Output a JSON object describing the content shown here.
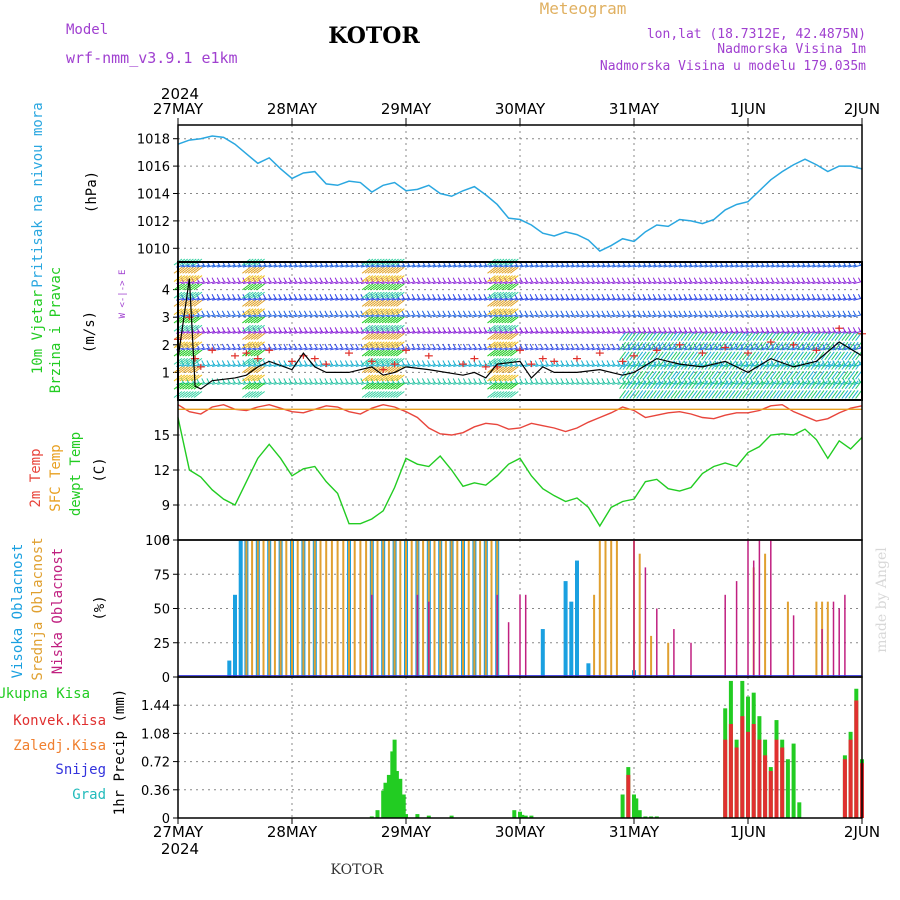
{
  "header": {
    "model_label": "Model",
    "model_name": "wrf-nmm_v3.9.1 e1km",
    "station": "KOTOR",
    "product": "Meteogram",
    "coords": "lon,lat (18.7312E, 42.4875N)",
    "elevation": "Nadmorska Visina 1m",
    "model_elevation": "Nadmorska Visina u modelu 179.035m"
  },
  "footer": {
    "station": "KOTOR",
    "credit": "made by Angel"
  },
  "time_axis": {
    "year": "2024",
    "labels": [
      "27MAY",
      "28MAY",
      "29MAY",
      "30MAY",
      "31MAY",
      "1JUN",
      "2JUN"
    ]
  },
  "colors": {
    "pressure": "#2aa7e0",
    "wind_speed": "#000000",
    "gust": "#e0302a",
    "temp_2m": "#e8453c",
    "temp_sfc": "#e8a020",
    "dewpoint": "#22cc22",
    "cloud_high": "#1aa0e0",
    "cloud_mid": "#e0a030",
    "cloud_low": "#c02080",
    "precip_total": "#22cc22",
    "precip_conv": "#e03030",
    "precip_strat": "#f08030",
    "snow": "#3333dd",
    "graupel": "#22bbbb",
    "purple_text": "#a040d0",
    "gold_text": "#e0b060"
  },
  "chart_data": [
    {
      "type": "line",
      "panel": "pressure",
      "ylabel": "Pritisak na nivou mora",
      "unit": "(hPa)",
      "ylim": [
        1009,
        1019
      ],
      "yticks": [
        1010,
        1012,
        1014,
        1016,
        1018
      ],
      "x_days": [
        0,
        0.1,
        0.2,
        0.3,
        0.4,
        0.5,
        0.6,
        0.7,
        0.8,
        0.9,
        1.0,
        1.1,
        1.2,
        1.3,
        1.4,
        1.5,
        1.6,
        1.7,
        1.8,
        1.9,
        2.0,
        2.1,
        2.2,
        2.3,
        2.4,
        2.5,
        2.6,
        2.7,
        2.8,
        2.9,
        3.0,
        3.1,
        3.2,
        3.3,
        3.4,
        3.5,
        3.6,
        3.7,
        3.8,
        3.9,
        4.0,
        4.1,
        4.2,
        4.3,
        4.4,
        4.5,
        4.6,
        4.7,
        4.8,
        4.9,
        5.0,
        5.1,
        5.2,
        5.3,
        5.4,
        5.5,
        5.6,
        5.7,
        5.8,
        5.9,
        6.0
      ],
      "values": [
        1017.6,
        1017.9,
        1018.0,
        1018.2,
        1018.1,
        1017.6,
        1016.9,
        1016.2,
        1016.6,
        1015.8,
        1015.1,
        1015.5,
        1015.6,
        1014.7,
        1014.6,
        1014.9,
        1014.8,
        1014.1,
        1014.6,
        1014.8,
        1014.2,
        1014.3,
        1014.6,
        1014.0,
        1013.8,
        1014.2,
        1014.5,
        1013.9,
        1013.2,
        1012.2,
        1012.1,
        1011.7,
        1011.1,
        1010.9,
        1011.2,
        1011.0,
        1010.6,
        1009.8,
        1010.2,
        1010.7,
        1010.5,
        1011.2,
        1011.7,
        1011.6,
        1012.1,
        1012.0,
        1011.8,
        1012.1,
        1012.8,
        1013.2,
        1013.4,
        1014.2,
        1015.0,
        1015.6,
        1016.1,
        1016.5,
        1016.1,
        1015.6,
        1016.0,
        1016.0,
        1015.8
      ]
    },
    {
      "type": "line",
      "panel": "wind",
      "ylabel": "10m Vjetar",
      "ylabel2": "Brzina i Pravac",
      "unit": "(m/s)",
      "compass": "W  <-|->  E",
      "ylim": [
        0,
        5
      ],
      "yticks": [
        1,
        2,
        3,
        4
      ],
      "x_days": [
        0,
        0.1,
        0.15,
        0.2,
        0.3,
        0.5,
        0.6,
        0.7,
        0.8,
        1.0,
        1.1,
        1.2,
        1.3,
        1.5,
        1.7,
        1.8,
        1.9,
        2.0,
        2.2,
        2.5,
        2.6,
        2.7,
        2.8,
        3.0,
        3.1,
        3.2,
        3.3,
        3.5,
        3.7,
        3.9,
        4.0,
        4.2,
        4.4,
        4.6,
        4.8,
        5.0,
        5.2,
        5.4,
        5.6,
        5.8,
        6.0
      ],
      "values": [
        1.5,
        4.4,
        0.5,
        0.4,
        0.7,
        0.8,
        0.9,
        1.2,
        1.4,
        1.1,
        1.7,
        1.2,
        1.0,
        1.0,
        1.2,
        0.9,
        1.0,
        1.2,
        1.1,
        0.9,
        1.0,
        0.8,
        1.3,
        1.4,
        0.8,
        1.2,
        1.0,
        1.0,
        1.1,
        0.9,
        1.0,
        1.5,
        1.3,
        1.2,
        1.4,
        1.0,
        1.5,
        1.2,
        1.4,
        2.1,
        1.6
      ],
      "gust_values": [
        2.2,
        3.0,
        1.5,
        1.2,
        1.8,
        1.6,
        1.7,
        1.5,
        1.8,
        1.4,
        1.6,
        1.5,
        1.3,
        1.7,
        1.4,
        1.1,
        1.3,
        1.8,
        1.6,
        1.3,
        1.5,
        1.2,
        1.2,
        1.8,
        1.3,
        1.5,
        1.4,
        1.5,
        1.7,
        1.4,
        1.6,
        1.8,
        2.0,
        1.7,
        1.9,
        1.7,
        2.1,
        2.0,
        1.8,
        2.6,
        2.4
      ]
    },
    {
      "type": "line",
      "panel": "temperature",
      "ylabel": "2m Temp",
      "ylabel2": "SFC Temp",
      "ylabel3": "dewpt Temp",
      "unit": "(C)",
      "ylim": [
        6,
        18
      ],
      "yticks": [
        6,
        9,
        12,
        15
      ],
      "x_days": [
        0,
        0.1,
        0.2,
        0.3,
        0.4,
        0.5,
        0.6,
        0.7,
        0.8,
        0.9,
        1.0,
        1.1,
        1.2,
        1.3,
        1.4,
        1.5,
        1.6,
        1.7,
        1.8,
        1.9,
        2.0,
        2.1,
        2.2,
        2.3,
        2.4,
        2.5,
        2.6,
        2.7,
        2.8,
        2.9,
        3.0,
        3.1,
        3.2,
        3.3,
        3.4,
        3.5,
        3.6,
        3.7,
        3.8,
        3.9,
        4.0,
        4.1,
        4.2,
        4.3,
        4.4,
        4.5,
        4.6,
        4.7,
        4.8,
        4.9,
        5.0,
        5.1,
        5.2,
        5.3,
        5.4,
        5.5,
        5.6,
        5.7,
        5.8,
        5.9,
        6.0
      ],
      "series": [
        {
          "key": "t2",
          "values": [
            17.6,
            17.0,
            16.8,
            17.4,
            17.6,
            17.2,
            17.1,
            17.4,
            17.6,
            17.3,
            17.0,
            16.9,
            17.2,
            17.5,
            17.4,
            17.0,
            16.8,
            17.3,
            17.6,
            17.4,
            17.0,
            16.5,
            15.6,
            15.1,
            15.0,
            15.2,
            15.7,
            16.0,
            15.9,
            15.5,
            15.6,
            16.0,
            15.8,
            15.6,
            15.3,
            15.6,
            16.1,
            16.5,
            16.9,
            17.4,
            17.1,
            16.5,
            16.7,
            16.9,
            17.0,
            16.8,
            16.5,
            16.4,
            16.7,
            16.9,
            16.9,
            17.1,
            17.5,
            17.6,
            17.0,
            16.6,
            16.2,
            16.4,
            16.9,
            17.3,
            17.5
          ]
        },
        {
          "key": "sfc",
          "values": [
            17.2,
            17.2,
            17.2,
            17.2,
            17.2,
            17.2,
            17.2,
            17.2,
            17.2,
            17.2,
            17.2,
            17.2,
            17.2,
            17.2,
            17.2,
            17.2,
            17.2,
            17.2,
            17.2,
            17.2,
            17.2,
            17.2,
            17.2,
            17.2,
            17.2,
            17.2,
            17.2,
            17.2,
            17.2,
            17.2,
            17.2,
            17.2,
            17.2,
            17.2,
            17.2,
            17.2,
            17.2,
            17.2,
            17.2,
            17.2,
            17.2,
            17.2,
            17.2,
            17.2,
            17.2,
            17.2,
            17.2,
            17.2,
            17.2,
            17.2,
            17.2,
            17.2,
            17.2,
            17.2,
            17.2,
            17.2,
            17.2,
            17.2,
            17.2,
            17.2,
            17.2
          ]
        },
        {
          "key": "dew",
          "values": [
            16.5,
            12.0,
            11.4,
            10.3,
            9.5,
            9.0,
            11.0,
            13.0,
            14.2,
            13.0,
            11.5,
            12.1,
            12.3,
            11.0,
            10.0,
            7.4,
            7.4,
            7.8,
            8.5,
            10.5,
            13.0,
            12.5,
            12.3,
            13.2,
            12.0,
            10.6,
            10.9,
            10.7,
            11.5,
            12.5,
            13.0,
            11.5,
            10.4,
            9.8,
            9.3,
            9.6,
            8.8,
            7.2,
            8.8,
            9.3,
            9.5,
            11.0,
            11.2,
            10.4,
            10.2,
            10.5,
            11.7,
            12.3,
            12.6,
            12.3,
            13.5,
            14.0,
            15.0,
            15.1,
            15.0,
            15.5,
            14.6,
            13.0,
            14.5,
            13.8,
            14.8
          ]
        }
      ]
    },
    {
      "type": "bar",
      "panel": "cloud",
      "ylabel": "Visoka Oblacnost",
      "ylabel2": "Srednja Oblacnost",
      "ylabel3": "Niska Oblacnost",
      "unit": "(%)",
      "ylim": [
        0,
        100
      ],
      "yticks": [
        0,
        25,
        50,
        75,
        100
      ],
      "series": [
        {
          "key": "high",
          "x_days": [
            0.45,
            0.5,
            0.55,
            0.6,
            0.7,
            0.8,
            0.9,
            1.0,
            1.1,
            1.2,
            1.5,
            1.7,
            1.8,
            1.9,
            2.0,
            2.1,
            2.2,
            2.3,
            2.4,
            2.5,
            2.6,
            2.7,
            2.8,
            3.2,
            3.4,
            3.45,
            3.5,
            3.6,
            4.0
          ],
          "values": [
            12,
            60,
            100,
            100,
            100,
            100,
            100,
            100,
            100,
            100,
            100,
            100,
            100,
            100,
            100,
            100,
            100,
            100,
            100,
            100,
            100,
            100,
            100,
            35,
            70,
            55,
            85,
            10,
            5
          ]
        },
        {
          "key": "mid",
          "x_days": [
            0.6,
            0.65,
            0.7,
            0.75,
            0.8,
            0.85,
            0.9,
            0.95,
            1.0,
            1.05,
            1.1,
            1.15,
            1.2,
            1.25,
            1.3,
            1.35,
            1.4,
            1.45,
            1.5,
            1.55,
            1.6,
            1.65,
            1.7,
            1.75,
            1.8,
            1.85,
            1.9,
            1.95,
            2.0,
            2.05,
            2.1,
            2.15,
            2.2,
            2.25,
            2.3,
            2.35,
            2.4,
            2.45,
            2.5,
            2.55,
            2.6,
            2.65,
            2.7,
            2.75,
            2.8,
            3.65,
            3.7,
            3.75,
            3.8,
            3.85,
            4.0,
            4.05,
            4.15,
            4.3,
            5.05,
            5.15,
            5.35,
            5.6,
            5.65,
            5.7
          ],
          "values": [
            100,
            100,
            100,
            100,
            100,
            100,
            100,
            100,
            100,
            100,
            100,
            100,
            100,
            100,
            100,
            100,
            100,
            100,
            100,
            100,
            100,
            100,
            100,
            100,
            100,
            100,
            100,
            100,
            100,
            100,
            100,
            100,
            100,
            100,
            100,
            100,
            100,
            100,
            100,
            100,
            100,
            100,
            100,
            100,
            100,
            60,
            100,
            100,
            100,
            100,
            100,
            90,
            30,
            25,
            80,
            90,
            55,
            55,
            55,
            55
          ]
        },
        {
          "key": "low",
          "x_days": [
            1.7,
            2.1,
            2.2,
            2.8,
            2.9,
            3.0,
            3.05,
            4.0,
            4.1,
            4.2,
            4.35,
            4.5,
            4.8,
            4.9,
            5.0,
            5.05,
            5.1,
            5.2,
            5.4,
            5.65,
            5.75,
            5.8,
            5.85
          ],
          "values": [
            60,
            60,
            55,
            60,
            40,
            60,
            60,
            100,
            80,
            50,
            35,
            25,
            60,
            70,
            100,
            85,
            100,
            100,
            45,
            35,
            55,
            50,
            60
          ]
        }
      ]
    },
    {
      "type": "bar",
      "panel": "precip",
      "ylabel": "1hr Precip (mm)",
      "legend": [
        "Ukupna Kisa",
        "Konvek.Kisa",
        "Zaledj.Kisa",
        "Snijeg",
        "Grad"
      ],
      "ylim": [
        0,
        1.8
      ],
      "yticks": [
        0,
        0.36,
        0.72,
        1.08,
        1.44
      ],
      "series": [
        {
          "key": "total",
          "x_days": [
            1.7,
            1.75,
            1.8,
            1.82,
            1.85,
            1.88,
            1.9,
            1.92,
            1.95,
            1.98,
            2.0,
            2.1,
            2.2,
            2.4,
            2.95,
            3.0,
            3.02,
            3.05,
            3.1,
            3.9,
            3.95,
            4.0,
            4.02,
            4.05,
            4.1,
            4.15,
            4.2,
            4.8,
            4.85,
            4.9,
            4.95,
            5.0,
            5.05,
            5.1,
            5.15,
            5.2,
            5.25,
            5.3,
            5.35,
            5.4,
            5.45,
            5.85,
            5.9,
            5.95,
            6.0
          ],
          "values": [
            0.02,
            0.1,
            0.35,
            0.45,
            0.55,
            0.85,
            1.0,
            0.6,
            0.5,
            0.3,
            0.05,
            0.05,
            0.03,
            0.03,
            0.1,
            0.08,
            0.04,
            0.03,
            0.03,
            0.3,
            0.65,
            0.3,
            0.25,
            0.1,
            0.02,
            0.02,
            0.02,
            1.4,
            1.75,
            1.0,
            1.75,
            1.55,
            1.6,
            1.3,
            1.0,
            0.65,
            1.25,
            1.0,
            0.75,
            0.95,
            0.2,
            0.8,
            1.1,
            1.65,
            0.75
          ]
        },
        {
          "key": "conv",
          "x_days": [
            3.95,
            4.8,
            4.85,
            4.9,
            4.95,
            5.0,
            5.05,
            5.1,
            5.15,
            5.2,
            5.25,
            5.3,
            5.85,
            5.9,
            5.95,
            6.0
          ],
          "values": [
            0.55,
            1.0,
            1.2,
            0.9,
            1.3,
            1.1,
            1.2,
            1.0,
            0.8,
            0.6,
            1.0,
            0.9,
            0.75,
            1.0,
            1.5,
            0.7
          ]
        }
      ]
    }
  ]
}
